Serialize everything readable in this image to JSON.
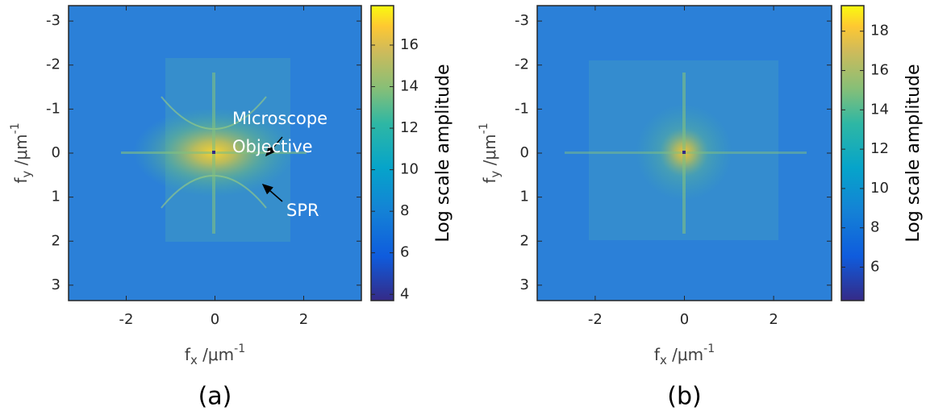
{
  "chart_data": [
    {
      "type": "heatmap",
      "caption": "(a)",
      "xlim": [
        -3.3,
        3.3
      ],
      "ylim": [
        -3.35,
        3.35
      ],
      "y_reversed": true,
      "xticks": [
        -2,
        0,
        2
      ],
      "yticks": [
        -3,
        -2,
        -1,
        0,
        1,
        2,
        3
      ],
      "x_label": {
        "base": "f",
        "sub": "x",
        "unit": " /μm",
        "sup": "-1"
      },
      "y_label": {
        "base": "f",
        "sub": "y",
        "unit": " /μm",
        "sup": "-1"
      },
      "colorbar": {
        "label": "Log scale amplitude",
        "lim": [
          3.7,
          17.9
        ],
        "ticks": [
          4,
          6,
          8,
          10,
          12,
          14,
          16
        ]
      },
      "annotations": [
        "Microscope",
        "Objective",
        "SPR"
      ]
    },
    {
      "type": "heatmap",
      "caption": "(b)",
      "xlim": [
        -3.3,
        3.3
      ],
      "ylim": [
        -3.35,
        3.35
      ],
      "y_reversed": true,
      "xticks": [
        -2,
        0,
        2
      ],
      "yticks": [
        -3,
        -2,
        -1,
        0,
        1,
        2,
        3
      ],
      "x_label": {
        "base": "f",
        "sub": "x",
        "unit": " /μm",
        "sup": "-1"
      },
      "y_label": {
        "base": "f",
        "sub": "y",
        "unit": " /μm",
        "sup": "-1"
      },
      "colorbar": {
        "label": "Log scale amplitude",
        "lim": [
          4.3,
          19.3
        ],
        "ticks": [
          6,
          8,
          10,
          12,
          14,
          16,
          18
        ]
      },
      "annotations": []
    }
  ]
}
